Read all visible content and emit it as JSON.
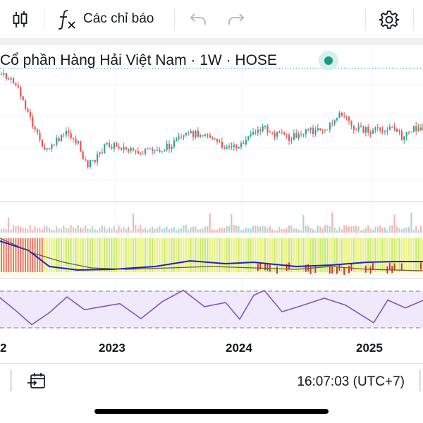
{
  "toolbar": {
    "indicators_label": "Các chỉ báo",
    "icons": [
      "candles-icon",
      "function-fx-icon",
      "undo-icon",
      "redo-icon",
      "settings-gear-icon"
    ]
  },
  "chart": {
    "title": "Cổ phần Hàng Hải Việt Nam · 1W · HOSE",
    "status_color": "#1a9c80",
    "up_color": "#26a69a",
    "down_color": "#ef5350"
  },
  "xaxis": {
    "labels": [
      "2",
      "2023",
      "2024",
      "2025"
    ]
  },
  "footer": {
    "time": "16:07:03 (UTC+7)",
    "icons": [
      "date-range-icon"
    ]
  }
}
